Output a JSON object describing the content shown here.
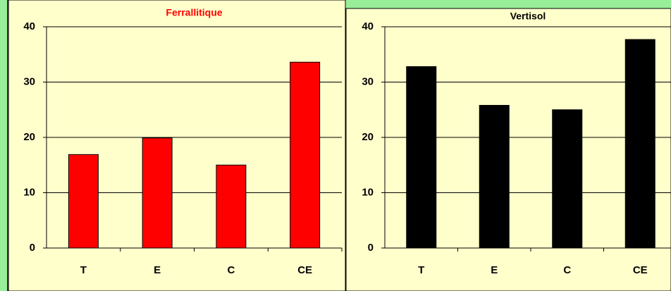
{
  "chart_data": [
    {
      "type": "bar",
      "title": "Ferrallitique",
      "title_color": "#ff0000",
      "categories": [
        "T",
        "E",
        "C",
        "CE"
      ],
      "values": [
        16.9,
        19.9,
        15.0,
        33.6
      ],
      "color": "#ff0000",
      "ylim": [
        0,
        40
      ],
      "yticks": [
        0,
        10,
        20,
        30,
        40
      ],
      "grid": true
    },
    {
      "type": "bar",
      "title": "Vertisol",
      "title_color": "#000000",
      "categories": [
        "T",
        "E",
        "C",
        "CE"
      ],
      "values": [
        32.8,
        25.8,
        25.0,
        37.7
      ],
      "color": "#000000",
      "ylim": [
        0,
        40
      ],
      "yticks": [
        0,
        10,
        20,
        30,
        40
      ],
      "grid": true
    }
  ]
}
